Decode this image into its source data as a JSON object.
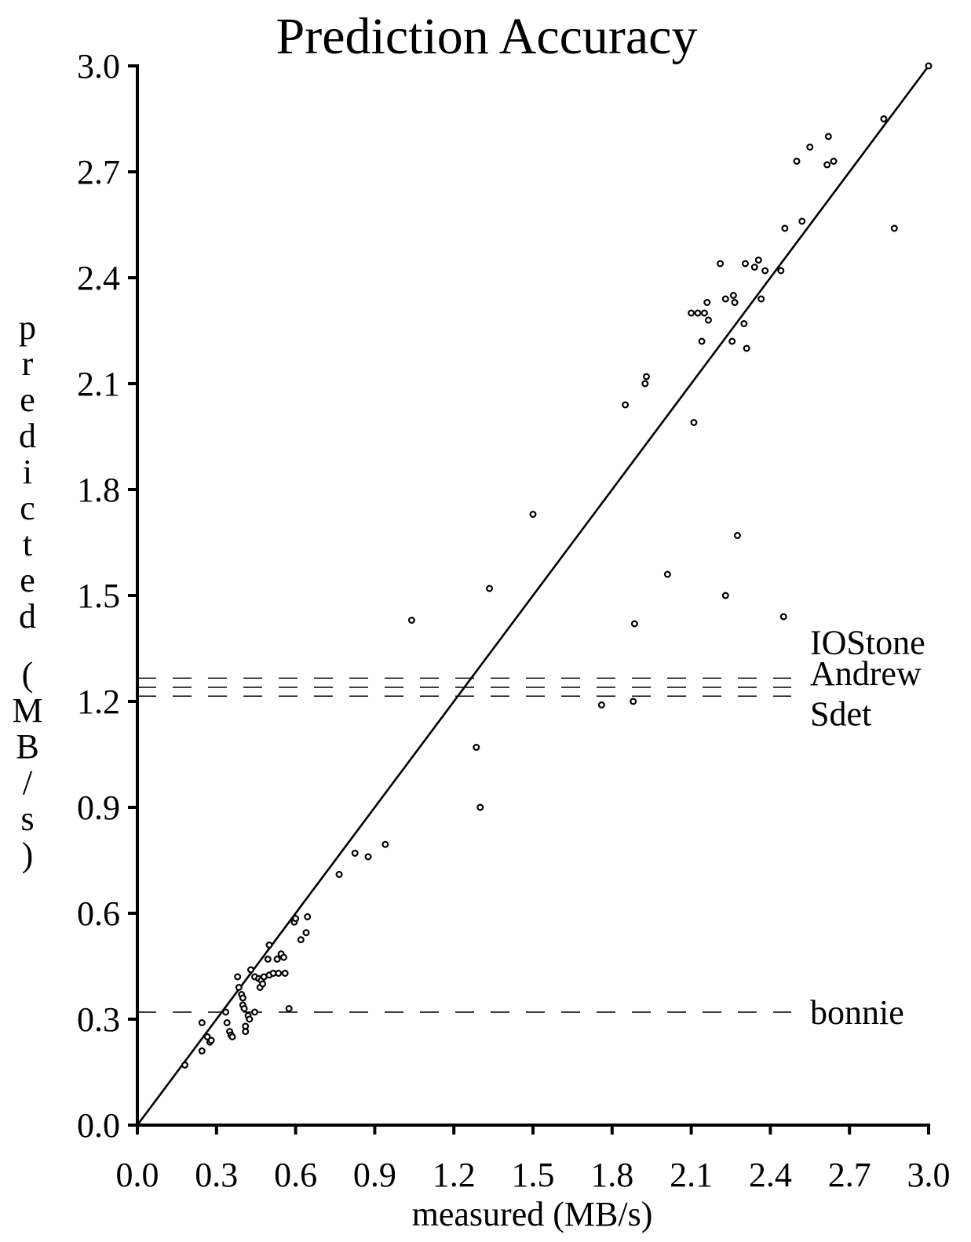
{
  "chart_data": {
    "type": "scatter",
    "title": "Prediction Accuracy",
    "xlabel": "measured (MB/s)",
    "ylabel": "predicted (MB/s)",
    "xlim": [
      0.0,
      3.0
    ],
    "ylim": [
      0.0,
      3.0
    ],
    "x_ticks": [
      "0.0",
      "0.3",
      "0.6",
      "0.9",
      "1.2",
      "1.5",
      "1.8",
      "2.1",
      "2.4",
      "2.7",
      "3.0"
    ],
    "y_ticks": [
      "0.0",
      "0.3",
      "0.6",
      "0.9",
      "1.2",
      "1.5",
      "1.8",
      "2.1",
      "2.4",
      "2.7",
      "3.0"
    ],
    "grid": false,
    "legend": "none",
    "diagonal": {
      "from": [
        0.0,
        0.0
      ],
      "to": [
        3.0,
        3.0
      ]
    },
    "reference_lines": [
      {
        "label": "IOStone",
        "y": 1.266
      },
      {
        "label": "Andrew",
        "y": 1.24
      },
      {
        "label": "Sdet",
        "y": 1.215
      },
      {
        "label": "bonnie",
        "y": 0.32
      }
    ],
    "points": [
      {
        "x": 0.18,
        "y": 0.17
      },
      {
        "x": 0.245,
        "y": 0.21
      },
      {
        "x": 0.245,
        "y": 0.29
      },
      {
        "x": 0.265,
        "y": 0.25
      },
      {
        "x": 0.275,
        "y": 0.235
      },
      {
        "x": 0.28,
        "y": 0.24
      },
      {
        "x": 0.335,
        "y": 0.32
      },
      {
        "x": 0.34,
        "y": 0.29
      },
      {
        "x": 0.35,
        "y": 0.265
      },
      {
        "x": 0.355,
        "y": 0.255
      },
      {
        "x": 0.36,
        "y": 0.25
      },
      {
        "x": 0.38,
        "y": 0.42
      },
      {
        "x": 0.385,
        "y": 0.39
      },
      {
        "x": 0.395,
        "y": 0.37
      },
      {
        "x": 0.4,
        "y": 0.36
      },
      {
        "x": 0.4,
        "y": 0.34
      },
      {
        "x": 0.405,
        "y": 0.33
      },
      {
        "x": 0.41,
        "y": 0.28
      },
      {
        "x": 0.41,
        "y": 0.265
      },
      {
        "x": 0.42,
        "y": 0.31
      },
      {
        "x": 0.425,
        "y": 0.3
      },
      {
        "x": 0.43,
        "y": 0.44
      },
      {
        "x": 0.445,
        "y": 0.42
      },
      {
        "x": 0.445,
        "y": 0.32
      },
      {
        "x": 0.46,
        "y": 0.415
      },
      {
        "x": 0.465,
        "y": 0.39
      },
      {
        "x": 0.47,
        "y": 0.41
      },
      {
        "x": 0.475,
        "y": 0.4
      },
      {
        "x": 0.48,
        "y": 0.42
      },
      {
        "x": 0.495,
        "y": 0.47
      },
      {
        "x": 0.5,
        "y": 0.51
      },
      {
        "x": 0.5,
        "y": 0.425
      },
      {
        "x": 0.515,
        "y": 0.43
      },
      {
        "x": 0.53,
        "y": 0.47
      },
      {
        "x": 0.535,
        "y": 0.43
      },
      {
        "x": 0.545,
        "y": 0.485
      },
      {
        "x": 0.555,
        "y": 0.475
      },
      {
        "x": 0.56,
        "y": 0.43
      },
      {
        "x": 0.575,
        "y": 0.33
      },
      {
        "x": 0.595,
        "y": 0.575
      },
      {
        "x": 0.6,
        "y": 0.585
      },
      {
        "x": 0.62,
        "y": 0.525
      },
      {
        "x": 0.64,
        "y": 0.545
      },
      {
        "x": 0.645,
        "y": 0.59
      },
      {
        "x": 0.765,
        "y": 0.71
      },
      {
        "x": 0.825,
        "y": 0.77
      },
      {
        "x": 0.875,
        "y": 0.76
      },
      {
        "x": 0.94,
        "y": 0.795
      },
      {
        "x": 1.04,
        "y": 1.43
      },
      {
        "x": 1.285,
        "y": 1.07
      },
      {
        "x": 1.3,
        "y": 0.9
      },
      {
        "x": 1.335,
        "y": 1.52
      },
      {
        "x": 1.5,
        "y": 1.73
      },
      {
        "x": 1.76,
        "y": 1.19
      },
      {
        "x": 1.85,
        "y": 2.04
      },
      {
        "x": 1.88,
        "y": 1.2
      },
      {
        "x": 1.885,
        "y": 1.42
      },
      {
        "x": 1.925,
        "y": 2.1
      },
      {
        "x": 1.93,
        "y": 2.12
      },
      {
        "x": 2.01,
        "y": 1.56
      },
      {
        "x": 2.1,
        "y": 2.3
      },
      {
        "x": 2.11,
        "y": 1.99
      },
      {
        "x": 2.125,
        "y": 2.3
      },
      {
        "x": 2.14,
        "y": 2.22
      },
      {
        "x": 2.15,
        "y": 2.3
      },
      {
        "x": 2.16,
        "y": 2.33
      },
      {
        "x": 2.165,
        "y": 2.28
      },
      {
        "x": 2.21,
        "y": 2.44
      },
      {
        "x": 2.23,
        "y": 2.34
      },
      {
        "x": 2.23,
        "y": 1.5
      },
      {
        "x": 2.255,
        "y": 2.22
      },
      {
        "x": 2.26,
        "y": 2.35
      },
      {
        "x": 2.265,
        "y": 2.33
      },
      {
        "x": 2.275,
        "y": 1.67
      },
      {
        "x": 2.3,
        "y": 2.27
      },
      {
        "x": 2.305,
        "y": 2.44
      },
      {
        "x": 2.31,
        "y": 2.2
      },
      {
        "x": 2.34,
        "y": 2.43
      },
      {
        "x": 2.355,
        "y": 2.45
      },
      {
        "x": 2.365,
        "y": 2.34
      },
      {
        "x": 2.38,
        "y": 2.42
      },
      {
        "x": 2.44,
        "y": 2.42
      },
      {
        "x": 2.45,
        "y": 1.44
      },
      {
        "x": 2.455,
        "y": 2.54
      },
      {
        "x": 2.5,
        "y": 2.73
      },
      {
        "x": 2.52,
        "y": 2.56
      },
      {
        "x": 2.55,
        "y": 2.77
      },
      {
        "x": 2.615,
        "y": 2.72
      },
      {
        "x": 2.62,
        "y": 2.8
      },
      {
        "x": 2.64,
        "y": 2.73
      },
      {
        "x": 2.83,
        "y": 2.85
      },
      {
        "x": 2.87,
        "y": 2.54
      },
      {
        "x": 3.0,
        "y": 3.0
      }
    ]
  }
}
